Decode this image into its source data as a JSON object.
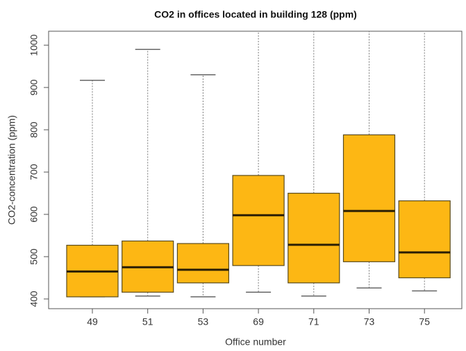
{
  "chart_data": {
    "type": "box",
    "title": "CO2 in offices located in building 128 (ppm)",
    "x_label": "Office number",
    "y_label": "CO2-concentration (ppm)",
    "categories": [
      "49",
      "51",
      "53",
      "69",
      "71",
      "73",
      "75"
    ],
    "min": [
      405,
      407,
      405,
      416,
      407,
      426,
      419
    ],
    "q1": [
      405,
      416,
      438,
      479,
      438,
      488,
      450
    ],
    "median": [
      465,
      475,
      469,
      598,
      528,
      608,
      510
    ],
    "q3": [
      527,
      537,
      531,
      692,
      650,
      788,
      632
    ],
    "max": [
      917,
      990,
      930,
      1100,
      1100,
      1100,
      1100
    ],
    "color": "#fdb714",
    "ylim": [
      377,
      1033
    ],
    "yticks": [
      400,
      500,
      600,
      700,
      800,
      900,
      1000
    ]
  }
}
